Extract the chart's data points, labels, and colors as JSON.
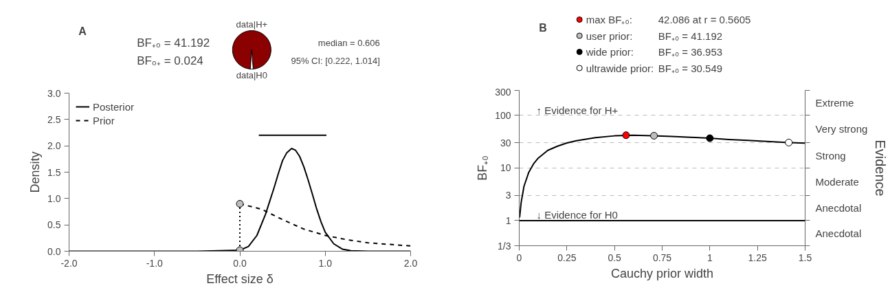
{
  "chart_data": [
    {
      "type": "line",
      "xlabel": "Effect size δ",
      "ylabel": "Density",
      "xlim": [
        -2,
        2
      ],
      "ylim": [
        0,
        3
      ],
      "xticks": [
        {
          "value": -2,
          "label": "-2.0"
        },
        {
          "value": -1,
          "label": "-1.0"
        },
        {
          "value": 0,
          "label": "0.0"
        },
        {
          "value": 1,
          "label": "1.0"
        },
        {
          "value": 2,
          "label": "2.0"
        }
      ],
      "yticks": [
        {
          "value": 0,
          "label": "0.0"
        },
        0.5,
        {
          "value": 1,
          "label": "1.0"
        },
        1.5,
        {
          "value": 2,
          "label": "2.0"
        },
        2.5,
        {
          "value": 3,
          "label": "3.0"
        }
      ],
      "legend": "top left",
      "annotations": [
        "A",
        "BF₊₀ = 41.192",
        "BF₀₊ = 0.024",
        "median = 0.606",
        "95% CI: [0.222, 1.014]"
      ],
      "series": [
        {
          "name": "Posterior",
          "color": "#000000",
          "line_style": "solid",
          "x": [
            -2,
            -1,
            -0.5,
            0,
            0.1,
            0.2,
            0.3,
            0.35,
            0.4,
            0.45,
            0.5,
            0.55,
            0.606,
            0.65,
            0.7,
            0.75,
            0.8,
            0.85,
            0.9,
            0.95,
            1.0,
            1.1,
            1.2,
            1.3,
            1.5,
            2.0
          ],
          "values": [
            0,
            0,
            0,
            0.02,
            0.09,
            0.3,
            0.7,
            0.95,
            1.2,
            1.47,
            1.72,
            1.87,
            1.95,
            1.92,
            1.8,
            1.6,
            1.35,
            1.08,
            0.8,
            0.56,
            0.36,
            0.14,
            0.04,
            0.01,
            0,
            0
          ]
        },
        {
          "name": "Prior",
          "color": "#000000",
          "line_style": "dashed",
          "x": [
            0,
            0.25,
            0.5,
            0.75,
            1.0,
            1.25,
            1.5,
            1.75,
            2.0
          ],
          "values": [
            0.9,
            0.8,
            0.6,
            0.42,
            0.3,
            0.22,
            0.16,
            0.13,
            0.1
          ]
        },
        {
          "type": "line",
          "color": "#000000",
          "line_style": "dotted",
          "x": [
            0,
            0
          ],
          "values": [
            0.02,
            0.9
          ]
        },
        {
          "type": "scatter",
          "marker": "circle",
          "color": "#bebebe",
          "x": [
            0,
            0
          ],
          "values": [
            0.9,
            0.02
          ]
        },
        {
          "type": "line",
          "color": "#000000",
          "line_style": "solid",
          "x": [
            0.222,
            1.014
          ],
          "values": [
            2.2,
            2.2
          ]
        }
      ]
    },
    {
      "type": "pie",
      "categories": [
        "data|H+",
        "data|H0"
      ],
      "values": [
        97.63,
        2.37
      ],
      "colors": [
        "#8b0000",
        "#ffffff"
      ]
    },
    {
      "type": "line",
      "xlabel": "Cauchy prior width",
      "ylabel": "BF₊₀",
      "y2label": "Evidence",
      "log": true,
      "grid": "y",
      "legend": "top",
      "xlim": [
        0,
        1.5
      ],
      "xticks": [
        0,
        0.25,
        0.5,
        0.75,
        1,
        1.25,
        1.5
      ],
      "ylim": [
        0.3333,
        300
      ],
      "yticks": [
        {
          "value": 0.3333,
          "label": "1/3"
        },
        1,
        3,
        10,
        30,
        100,
        300
      ],
      "ref_lines": [
        {
          "axis": "y",
          "value": 1,
          "color": "#000000",
          "line_style": "solid"
        }
      ],
      "annotations": [
        "B",
        "42.086 at r = 0.5605",
        "BF₊₀ = 41.192",
        "BF₊₀ = 36.953",
        "BF₊₀ = 30.549",
        "↑ Evidence for H+",
        "↓ Evidence for H0",
        "Extreme",
        "Very strong",
        "Strong",
        "Moderate",
        "Anecdotal",
        "Anecdotal"
      ],
      "series": [
        {
          "color": "#000000",
          "line_style": "solid",
          "x": [
            0.002,
            0.01,
            0.025,
            0.05,
            0.075,
            0.1,
            0.15,
            0.2,
            0.25,
            0.3,
            0.4,
            0.5,
            0.6,
            0.7,
            0.8,
            0.9,
            1.0,
            1.1,
            1.2,
            1.3,
            1.4,
            1.5
          ],
          "values": [
            1.15,
            2.2,
            4.5,
            8.3,
            12,
            15.5,
            21.7,
            26,
            30,
            33,
            38,
            41,
            42,
            41.3,
            40,
            38.5,
            37,
            35,
            33.5,
            32,
            30.7,
            29.7
          ]
        },
        {
          "type": "scatter",
          "name": "max BF₊₀:",
          "marker": "circle",
          "color": "#ff0000",
          "x": [
            0.5605
          ],
          "values": [
            42.086
          ]
        },
        {
          "type": "scatter",
          "name": "user prior:",
          "marker": "circle",
          "color": "#bebebe",
          "x": [
            0.7071
          ],
          "values": [
            41.192
          ]
        },
        {
          "type": "scatter",
          "name": "wide prior:",
          "marker": "circle",
          "color": "#000000",
          "x": [
            1.0
          ],
          "values": [
            36.953
          ]
        },
        {
          "type": "scatter",
          "name": "ultrawide prior:",
          "marker": "circle",
          "color": "#ffffff",
          "x": [
            1.4142
          ],
          "values": [
            30.549
          ]
        }
      ]
    }
  ]
}
